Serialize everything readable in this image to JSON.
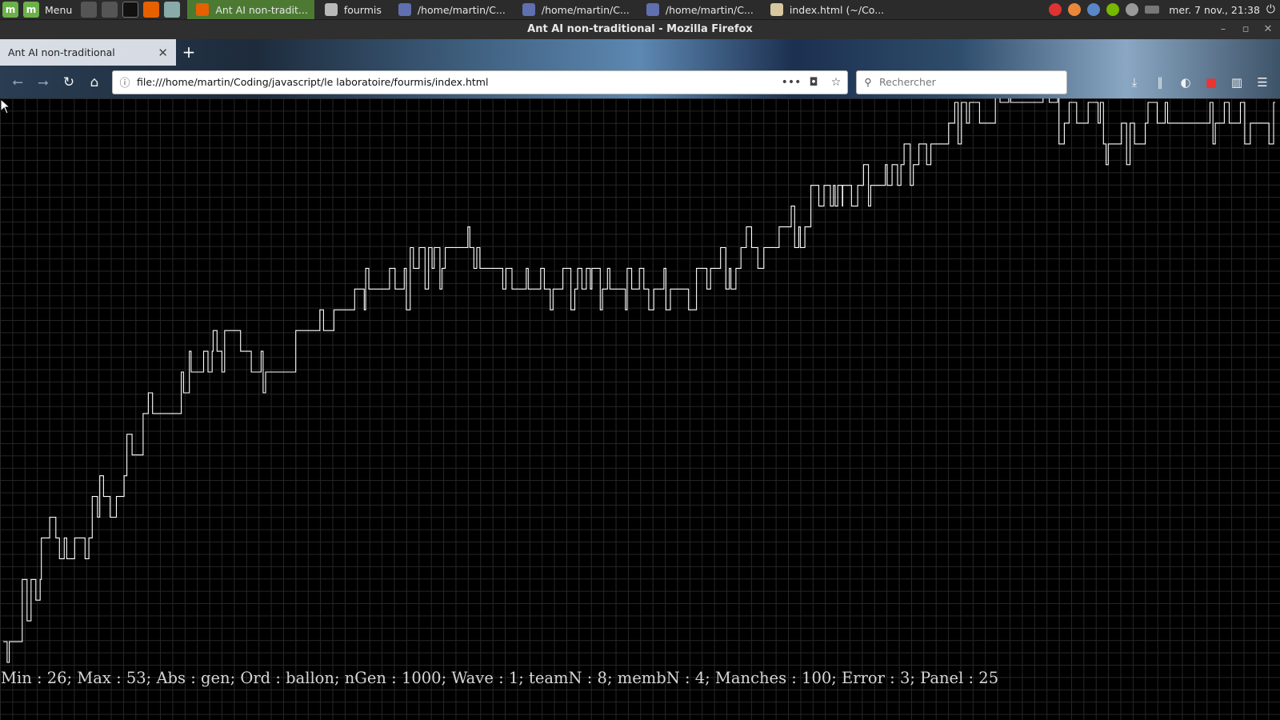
{
  "os_panel": {
    "menu_label": "Menu",
    "tasks": [
      {
        "label": "Ant AI non-tradit...",
        "active": true,
        "icon": "firefox-icon"
      },
      {
        "label": "fourmis",
        "active": false,
        "icon": "folder-icon"
      },
      {
        "label": "/home/martin/C...",
        "active": false,
        "icon": "editor-icon"
      },
      {
        "label": "/home/martin/C...",
        "active": false,
        "icon": "editor-icon"
      },
      {
        "label": "/home/martin/C...",
        "active": false,
        "icon": "editor-icon"
      },
      {
        "label": "index.html (~/Co...",
        "active": false,
        "icon": "document-icon"
      }
    ],
    "clock": "mer. 7 nov., 21:38"
  },
  "window": {
    "title": "Ant AI non-traditional - Mozilla Firefox"
  },
  "tab": {
    "label": "Ant AI non-traditional"
  },
  "navbar": {
    "url": "file:///home/martin/Coding/javascript/le laboratoire/fourmis/index.html",
    "search_placeholder": "Rechercher"
  },
  "page": {
    "stats": "Min : 26; Max : 53; Abs : gen; Ord : ballon; nGen : 1000; Wave : 1; teamN : 8; membN : 4; Manches : 100; Error : 3; Panel : 25"
  },
  "chart_data": {
    "type": "line",
    "x_range": [
      0,
      1000
    ],
    "y_range": [
      26,
      53
    ],
    "line_color": "#ffffff",
    "grid": true,
    "series": [
      {
        "segments": [
          [
            0,
            27
          ],
          [
            15,
            29
          ],
          [
            30,
            32
          ],
          [
            70,
            34
          ],
          [
            95,
            36
          ],
          [
            110,
            38
          ],
          [
            140,
            40
          ],
          [
            165,
            41
          ],
          [
            195,
            40
          ],
          [
            230,
            42
          ],
          [
            260,
            43
          ],
          [
            285,
            44
          ],
          [
            320,
            45
          ],
          [
            345,
            46
          ],
          [
            370,
            45
          ],
          [
            400,
            44
          ],
          [
            440,
            44
          ],
          [
            475,
            44
          ],
          [
            510,
            44
          ],
          [
            545,
            45
          ],
          [
            580,
            46
          ],
          [
            610,
            47
          ],
          [
            635,
            48
          ],
          [
            660,
            49
          ],
          [
            695,
            50
          ],
          [
            720,
            51
          ],
          [
            745,
            52
          ],
          [
            780,
            53
          ],
          [
            800,
            53
          ],
          [
            830,
            52
          ],
          [
            865,
            51
          ],
          [
            900,
            52
          ],
          [
            930,
            52
          ],
          [
            960,
            52
          ],
          [
            1000,
            52
          ]
        ],
        "noise_levels": [
          1,
          1,
          1,
          1,
          1,
          1,
          1,
          1,
          1,
          1,
          1,
          1,
          1,
          1,
          1,
          1,
          1,
          1,
          1,
          1,
          1,
          1,
          1,
          1,
          1,
          1,
          1,
          1,
          1,
          1,
          1,
          1,
          1,
          1,
          1
        ]
      }
    ]
  }
}
